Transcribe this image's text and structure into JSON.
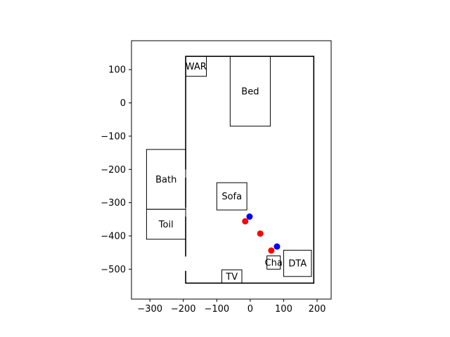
{
  "chart_data": {
    "type": "scatter",
    "title": "",
    "xlabel": "",
    "ylabel": "",
    "xlim": [
      -355,
      242
    ],
    "ylim": [
      -590,
      187
    ],
    "x_ticks": [
      -300,
      -200,
      -100,
      0,
      100,
      200
    ],
    "y_ticks": [
      100,
      0,
      -100,
      -200,
      -300,
      -400,
      -500
    ],
    "x_tick_labels": [
      "−300",
      "−200",
      "−100",
      "0",
      "100",
      "200"
    ],
    "y_tick_labels": [
      "100",
      "0",
      "−100",
      "−200",
      "−300",
      "−400",
      "−500"
    ],
    "grid": false,
    "room": {
      "x0": -193,
      "x1": 190,
      "y0": -542,
      "y1": 140,
      "wall_gaps": [
        {
          "side": "left",
          "y0": -225,
          "y1": -200
        },
        {
          "side": "left",
          "y0": -342,
          "y1": -315
        },
        {
          "side": "left",
          "y0": -505,
          "y1": -462
        }
      ]
    },
    "furniture": [
      {
        "label": "WAR",
        "x0": -193,
        "x1": -131,
        "y0": 80,
        "y1": 140
      },
      {
        "label": "Bed",
        "x0": -60,
        "x1": 60,
        "y0": -70,
        "y1": 140
      },
      {
        "label": "Bath",
        "x0": -310,
        "x1": -193,
        "y0": -320,
        "y1": -140
      },
      {
        "label": "Toil",
        "x0": -310,
        "x1": -193,
        "y0": -410,
        "y1": -320
      },
      {
        "label": "Sofa",
        "x0": -100,
        "x1": -10,
        "y0": -322,
        "y1": -240
      },
      {
        "label": "Cha",
        "x0": 50,
        "x1": 90,
        "y0": -500,
        "y1": -460
      },
      {
        "label": "DTA",
        "x0": 100,
        "x1": 183,
        "y0": -522,
        "y1": -443
      },
      {
        "label": "TV",
        "x0": -85,
        "x1": -25,
        "y0": -542,
        "y1": -502
      }
    ],
    "series": [
      {
        "color": "#ff0000",
        "points": [
          [
            -15,
            -356
          ],
          [
            30,
            -393
          ],
          [
            63,
            -444
          ]
        ]
      },
      {
        "color": "#0000ff",
        "points": [
          [
            -2,
            -342
          ],
          [
            80,
            -432
          ]
        ]
      }
    ]
  }
}
